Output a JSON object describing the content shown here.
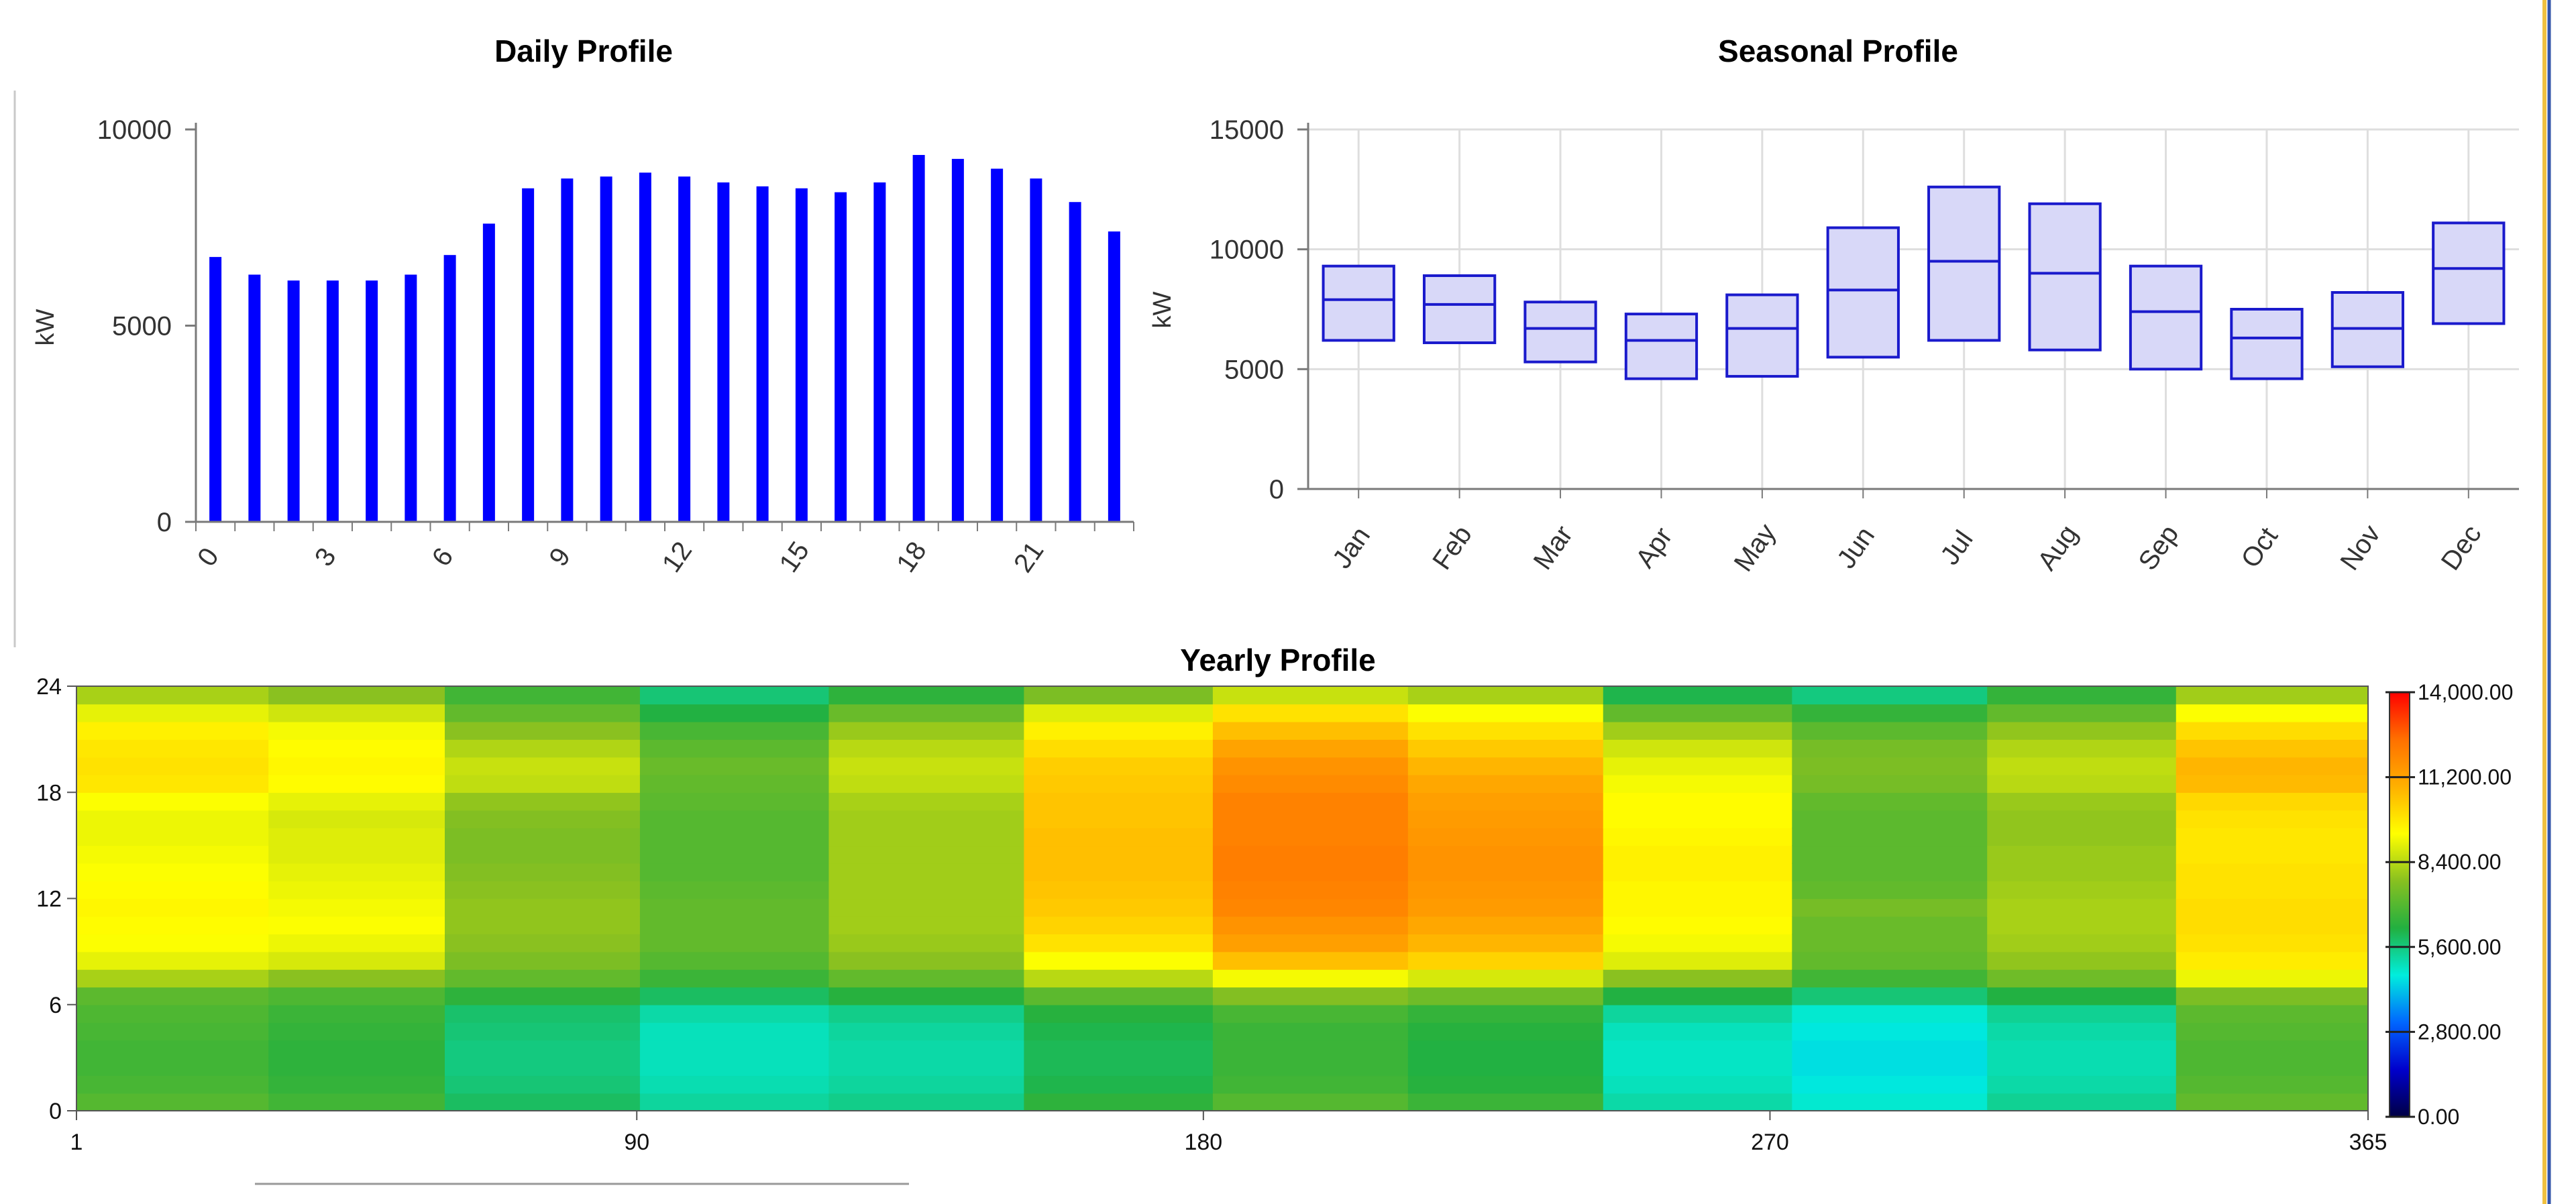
{
  "chart_data": [
    {
      "type": "bar",
      "title": "Daily Profile",
      "xlabel": "",
      "ylabel": "kW",
      "ylim": [
        0,
        10000
      ],
      "yticks": [
        "0",
        "5000",
        "10000"
      ],
      "xticks": [
        "0",
        "3",
        "6",
        "9",
        "12",
        "15",
        "18",
        "21"
      ],
      "bar_color": "#0000ff",
      "categories": [
        0,
        1,
        2,
        3,
        4,
        5,
        6,
        7,
        8,
        9,
        10,
        11,
        12,
        13,
        14,
        15,
        16,
        17,
        18,
        19,
        20,
        21,
        22,
        23
      ],
      "values": [
        6750,
        6300,
        6150,
        6150,
        6150,
        6300,
        6800,
        7600,
        8500,
        8750,
        8800,
        8900,
        8800,
        8650,
        8550,
        8500,
        8400,
        8650,
        9350,
        9250,
        9000,
        8750,
        8150,
        7400
      ]
    },
    {
      "type": "box",
      "title": "Seasonal Profile",
      "xlabel": "",
      "ylabel": "kW",
      "ylim": [
        0,
        15000
      ],
      "yticks": [
        "0",
        "5000",
        "10000",
        "15000"
      ],
      "box_fill": "#d8d8f8",
      "box_stroke": "#1a1acc",
      "categories": [
        "Jan",
        "Feb",
        "Mar",
        "Apr",
        "May",
        "Jun",
        "Jul",
        "Aug",
        "Sep",
        "Oct",
        "Nov",
        "Dec"
      ],
      "low": [
        6200,
        6100,
        5300,
        4600,
        4700,
        5500,
        6200,
        5800,
        5000,
        4600,
        5100,
        6900
      ],
      "median": [
        7900,
        7700,
        6700,
        6200,
        6700,
        8300,
        9500,
        9000,
        7400,
        6300,
        6700,
        9200
      ],
      "high": [
        9300,
        8900,
        7800,
        7300,
        8100,
        10900,
        12600,
        11900,
        9300,
        7500,
        8200,
        11100
      ]
    },
    {
      "type": "heatmap",
      "title": "Yearly Profile",
      "xlabel": "",
      "ylabel": "",
      "xlim": [
        1,
        365
      ],
      "ylim": [
        0,
        24
      ],
      "xticks": [
        "1",
        "90",
        "180",
        "270",
        "365"
      ],
      "yticks": [
        "0",
        "6",
        "12",
        "18",
        "24"
      ],
      "colorbar": {
        "min": 0,
        "max": 14000,
        "ticks": [
          "0.00",
          "2,800.00",
          "5,600.00",
          "8,400.00",
          "11,200.00",
          "14,000.00"
        ],
        "stops": [
          "#000044",
          "#0000cc",
          "#0066ff",
          "#00eedd",
          "#22b040",
          "#88c020",
          "#ffff00",
          "#ffb000",
          "#ff7000",
          "#ff0000"
        ]
      },
      "month_bands": [
        {
          "month": "Jan",
          "day_start": 1,
          "day_end": 31,
          "hourly_kw": [
            7000,
            6800,
            6700,
            6700,
            6800,
            6900,
            7100,
            8200,
            9000,
            9300,
            9400,
            9500,
            9400,
            9300,
            9200,
            9100,
            9100,
            9300,
            9800,
            9900,
            9800,
            9600,
            9000,
            8200
          ]
        },
        {
          "month": "Feb",
          "day_start": 32,
          "day_end": 59,
          "hourly_kw": [
            6700,
            6500,
            6400,
            6400,
            6500,
            6600,
            6900,
            7800,
            8800,
            9100,
            9300,
            9200,
            9100,
            9000,
            8900,
            8900,
            8800,
            9000,
            9400,
            9500,
            9400,
            9200,
            8700,
            7800
          ]
        },
        {
          "month": "Mar",
          "day_start": 60,
          "day_end": 90,
          "hourly_kw": [
            5900,
            5700,
            5600,
            5600,
            5700,
            5800,
            6400,
            7200,
            7600,
            7800,
            7900,
            7900,
            7800,
            7700,
            7600,
            7600,
            7700,
            7900,
            8500,
            8600,
            8300,
            7800,
            7200,
            6700
          ]
        },
        {
          "month": "Apr",
          "day_start": 91,
          "day_end": 120,
          "hourly_kw": [
            5300,
            5100,
            5000,
            5000,
            5000,
            5200,
            5900,
            6600,
            7000,
            7200,
            7200,
            7200,
            7100,
            7000,
            7000,
            7000,
            7000,
            7100,
            7200,
            7300,
            7100,
            6800,
            6200,
            5700
          ]
        },
        {
          "month": "May",
          "day_start": 121,
          "day_end": 151,
          "hourly_kw": [
            5500,
            5300,
            5200,
            5200,
            5300,
            5500,
            6300,
            7200,
            7800,
            8000,
            8100,
            8100,
            8100,
            8100,
            8100,
            8100,
            8100,
            8200,
            8500,
            8600,
            8400,
            8000,
            7300,
            6400
          ]
        },
        {
          "month": "Jun",
          "day_start": 152,
          "day_end": 181,
          "hourly_kw": [
            6400,
            6100,
            6000,
            6000,
            6100,
            6300,
            7100,
            8400,
            9300,
            9900,
            10200,
            10400,
            10500,
            10600,
            10600,
            10600,
            10500,
            10500,
            10400,
            10300,
            10000,
            9600,
            8900,
            7600
          ]
        },
        {
          "month": "Jul",
          "day_start": 182,
          "day_end": 212,
          "hourly_kw": [
            7000,
            6700,
            6600,
            6600,
            6600,
            6800,
            7700,
            9200,
            10600,
            11300,
            11600,
            11900,
            12000,
            12100,
            12100,
            12000,
            12000,
            12000,
            11800,
            11600,
            11200,
            10600,
            9900,
            8600
          ]
        },
        {
          "month": "Aug",
          "day_start": 213,
          "day_end": 243,
          "hourly_kw": [
            6600,
            6300,
            6200,
            6200,
            6300,
            6500,
            7400,
            8800,
            10200,
            10800,
            11100,
            11400,
            11500,
            11600,
            11600,
            11500,
            11400,
            11300,
            11100,
            10800,
            10400,
            9900,
            9300,
            8200
          ]
        },
        {
          "month": "Sep",
          "day_start": 244,
          "day_end": 273,
          "hourly_kw": [
            5200,
            5000,
            4900,
            4900,
            5000,
            5300,
            6200,
            7800,
            8900,
            9200,
            9400,
            9500,
            9500,
            9600,
            9600,
            9500,
            9400,
            9400,
            9200,
            9000,
            8700,
            8100,
            7200,
            6100
          ]
        },
        {
          "month": "Oct",
          "day_start": 274,
          "day_end": 304,
          "hourly_kw": [
            4800,
            4600,
            4500,
            4500,
            4600,
            4800,
            5700,
            6700,
            7200,
            7300,
            7300,
            7500,
            7200,
            7100,
            7100,
            7100,
            7100,
            7200,
            7500,
            7600,
            7500,
            7100,
            6500,
            5600
          ]
        },
        {
          "month": "Nov",
          "day_start": 305,
          "day_end": 334,
          "hourly_kw": [
            5400,
            5200,
            5100,
            5100,
            5200,
            5400,
            6200,
            7400,
            7900,
            8100,
            8200,
            8200,
            8100,
            8000,
            8000,
            7900,
            7900,
            8000,
            8400,
            8500,
            8300,
            7900,
            7200,
            6500
          ]
        },
        {
          "month": "Dec",
          "day_start": 335,
          "day_end": 365,
          "hourly_kw": [
            7200,
            7000,
            6900,
            6900,
            7000,
            7100,
            7600,
            9100,
            9700,
            9900,
            10000,
            10000,
            9900,
            9900,
            9800,
            9800,
            9900,
            10100,
            10700,
            10800,
            10500,
            10000,
            9300,
            8100
          ]
        }
      ]
    }
  ]
}
